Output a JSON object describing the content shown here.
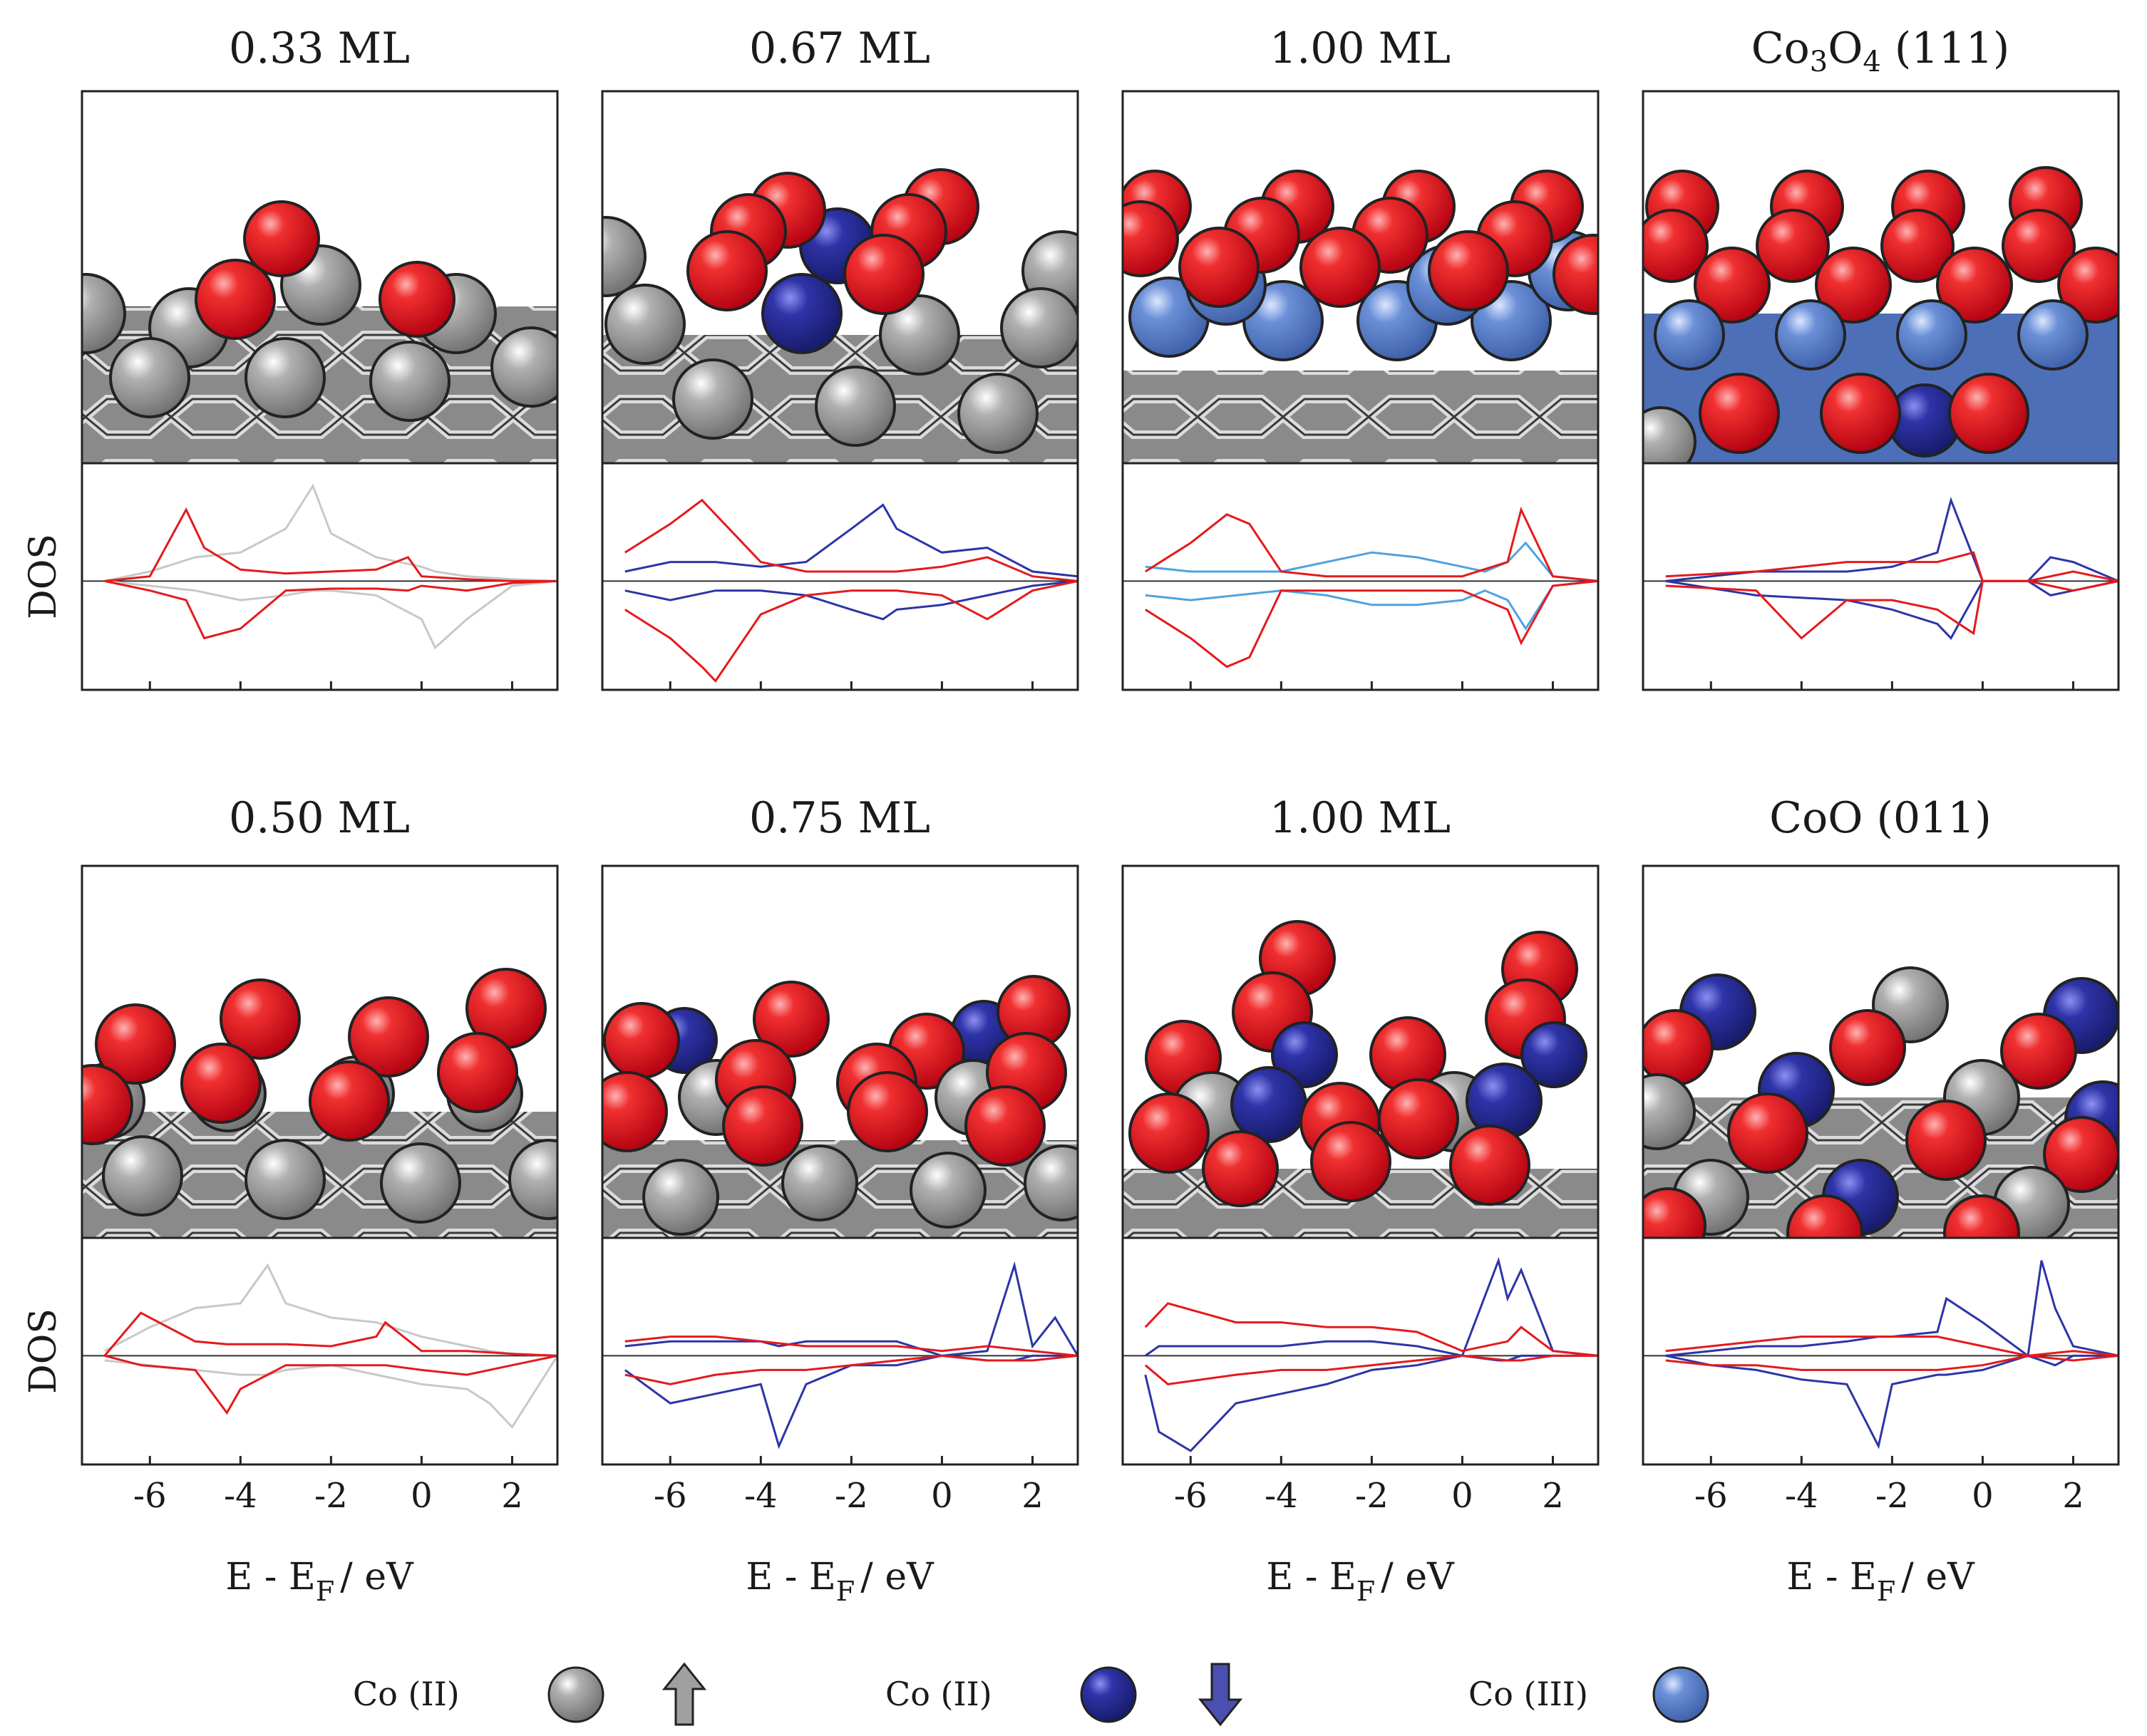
{
  "figure": {
    "y_axis_label": "DOS",
    "x_axis_label_main": "E - E",
    "x_axis_label_sub": "F",
    "x_axis_label_unit": "/ eV",
    "x_ticks": [
      "-6",
      "-4",
      "-2",
      "0",
      "2"
    ],
    "x_tick_values": [
      -6,
      -4,
      -2,
      0,
      2
    ],
    "x_range": [
      -7.5,
      3.0
    ]
  },
  "panels": [
    {
      "title": "0.33 ML",
      "structure": "0.33 ML"
    },
    {
      "title": "0.67 ML",
      "structure": "0.67 ML"
    },
    {
      "title": "1.00 ML",
      "structure": "1.00 ML top"
    },
    {
      "title_main": "Co",
      "title_sub1": "3",
      "title_mid": "O",
      "title_sub2": "4",
      "title_tail": " (111)",
      "structure": "Co3O4 (111)"
    },
    {
      "title": "0.50 ML",
      "structure": "0.50 ML"
    },
    {
      "title": "0.75 ML",
      "structure": "0.75 ML"
    },
    {
      "title": "1.00 ML",
      "structure": "1.00 ML bottom"
    },
    {
      "title": "CoO (011)",
      "structure": "CoO (011)"
    }
  ],
  "legend": {
    "items": [
      {
        "label": "Co (II)",
        "color": "#999999",
        "arrow": "up"
      },
      {
        "label": "Co (II)",
        "color": "#2a2f9a",
        "arrow": "down"
      },
      {
        "label": "Co (III)",
        "color": "#5f87d4",
        "arrow": "none"
      }
    ]
  },
  "colors": {
    "oxygen": "#e4161f",
    "co2_up": "#999999",
    "co2_down": "#2a2f9a",
    "co3": "#5f87d4",
    "dos_red": "#e41a1c",
    "dos_blue": "#2c35a6",
    "dos_lightblue": "#4fa3df",
    "dos_gray": "#d9d9d9"
  },
  "chart_data": [
    {
      "type": "line",
      "title": "0.33 ML",
      "xlabel": "E - E_F / eV",
      "ylabel": "DOS",
      "xlim": [
        -7.5,
        3
      ],
      "series": [
        {
          "name": "Co surface (gray)",
          "x": [
            -7,
            -6,
            -5,
            -4,
            -3,
            -2.4,
            -2,
            -1,
            0,
            0.3,
            1,
            2,
            3
          ],
          "up": [
            0,
            0.1,
            0.25,
            0.3,
            0.55,
            1.0,
            0.5,
            0.25,
            0.15,
            0.1,
            0.05,
            0.02,
            0
          ],
          "down": [
            0,
            -0.05,
            -0.1,
            -0.2,
            -0.15,
            -0.1,
            -0.1,
            -0.15,
            -0.4,
            -0.7,
            -0.4,
            -0.05,
            0
          ]
        },
        {
          "name": "O (red)",
          "x": [
            -7,
            -6,
            -5.2,
            -4.8,
            -4,
            -3,
            -2,
            -1,
            -0.3,
            0,
            1,
            2,
            3
          ],
          "up": [
            0,
            0.05,
            0.75,
            0.35,
            0.12,
            0.08,
            0.1,
            0.12,
            0.25,
            0.05,
            0.02,
            0,
            0
          ],
          "down": [
            0,
            -0.1,
            -0.2,
            -0.6,
            -0.5,
            -0.1,
            -0.08,
            -0.08,
            -0.1,
            -0.05,
            -0.1,
            -0.02,
            0
          ]
        }
      ]
    },
    {
      "type": "line",
      "title": "0.67 ML",
      "xlabel": "E - E_F / eV",
      "ylabel": "DOS",
      "xlim": [
        -7.5,
        3
      ],
      "series": [
        {
          "name": "Co(II) down (blue)",
          "x": [
            -7,
            -6,
            -5,
            -4,
            -3,
            -2,
            -1.3,
            -1,
            0,
            1,
            2,
            3
          ],
          "up": [
            0.1,
            0.2,
            0.2,
            0.15,
            0.2,
            0.55,
            0.8,
            0.55,
            0.3,
            0.35,
            0.1,
            0.05
          ],
          "down": [
            -0.1,
            -0.2,
            -0.1,
            -0.1,
            -0.15,
            -0.3,
            -0.4,
            -0.3,
            -0.25,
            -0.15,
            -0.05,
            0
          ]
        },
        {
          "name": "O (red)",
          "x": [
            -7,
            -6,
            -5.3,
            -5,
            -4,
            -3,
            -2,
            -1,
            0,
            1,
            2,
            3
          ],
          "up": [
            0.3,
            0.6,
            0.85,
            0.7,
            0.2,
            0.1,
            0.1,
            0.1,
            0.15,
            0.25,
            0.05,
            0
          ],
          "down": [
            -0.3,
            -0.6,
            -0.9,
            -1.05,
            -0.35,
            -0.15,
            -0.1,
            -0.1,
            -0.15,
            -0.4,
            -0.1,
            0
          ]
        }
      ]
    },
    {
      "type": "line",
      "title": "1.00 ML",
      "xlabel": "E - E_F / eV",
      "ylabel": "DOS",
      "xlim": [
        -7.5,
        3
      ],
      "series": [
        {
          "name": "Co(III) (light blue)",
          "x": [
            -7,
            -6,
            -4,
            -3,
            -2,
            -1,
            0,
            0.5,
            1,
            1.4,
            2,
            3
          ],
          "up": [
            0.15,
            0.1,
            0.1,
            0.2,
            0.3,
            0.25,
            0.15,
            0.1,
            0.2,
            0.4,
            0.05,
            0
          ],
          "down": [
            -0.15,
            -0.2,
            -0.1,
            -0.15,
            -0.25,
            -0.25,
            -0.2,
            -0.1,
            -0.2,
            -0.5,
            -0.05,
            0
          ]
        },
        {
          "name": "O (red)",
          "x": [
            -7,
            -6,
            -5.2,
            -4.7,
            -4,
            -3,
            -2,
            -1,
            0,
            1,
            1.3,
            2,
            3
          ],
          "up": [
            0.1,
            0.4,
            0.7,
            0.6,
            0.1,
            0.05,
            0.05,
            0.05,
            0.05,
            0.2,
            0.75,
            0.05,
            0
          ],
          "down": [
            -0.3,
            -0.6,
            -0.9,
            -0.8,
            -0.1,
            -0.1,
            -0.1,
            -0.1,
            -0.1,
            -0.3,
            -0.65,
            -0.05,
            0
          ]
        }
      ]
    },
    {
      "type": "line",
      "title": "Co3O4 (111)",
      "xlabel": "E - E_F / eV",
      "ylabel": "DOS",
      "xlim": [
        -7.5,
        3
      ],
      "series": [
        {
          "name": "Co(II) (blue)",
          "x": [
            -7,
            -5,
            -3,
            -2,
            -1,
            -0.7,
            0,
            1,
            1.5,
            2,
            3
          ],
          "up": [
            0,
            0.1,
            0.1,
            0.15,
            0.3,
            0.85,
            0,
            0,
            0.25,
            0.2,
            0
          ],
          "down": [
            0,
            -0.15,
            -0.2,
            -0.3,
            -0.45,
            -0.6,
            0,
            0,
            -0.15,
            -0.1,
            0
          ]
        },
        {
          "name": "O (red)",
          "x": [
            -7,
            -5,
            -4,
            -3,
            -2,
            -1,
            -0.2,
            0,
            1,
            2,
            3
          ],
          "up": [
            0.05,
            0.1,
            0.15,
            0.2,
            0.2,
            0.2,
            0.3,
            0,
            0,
            0.1,
            0
          ],
          "down": [
            -0.05,
            -0.1,
            -0.6,
            -0.2,
            -0.2,
            -0.3,
            -0.55,
            0,
            0,
            -0.1,
            0
          ]
        }
      ]
    },
    {
      "type": "line",
      "title": "0.50 ML",
      "xlabel": "E - E_F / eV",
      "ylabel": "DOS",
      "xlim": [
        -7.5,
        3
      ],
      "series": [
        {
          "name": "Co surface (gray)",
          "x": [
            -7,
            -6,
            -5,
            -4,
            -3.4,
            -3,
            -2,
            -1,
            0,
            1,
            1.5,
            2,
            3
          ],
          "up": [
            0.05,
            0.3,
            0.5,
            0.55,
            0.95,
            0.55,
            0.4,
            0.35,
            0.2,
            0.1,
            0.05,
            0.02,
            0
          ],
          "down": [
            -0.05,
            -0.1,
            -0.15,
            -0.2,
            -0.2,
            -0.15,
            -0.1,
            -0.2,
            -0.3,
            -0.35,
            -0.5,
            -0.75,
            0
          ]
        },
        {
          "name": "O (red)",
          "x": [
            -7,
            -6.2,
            -5,
            -4.3,
            -4,
            -3,
            -2,
            -1,
            -0.8,
            0,
            1,
            2,
            3
          ],
          "up": [
            0,
            0.45,
            0.15,
            0.12,
            0.12,
            0.12,
            0.1,
            0.2,
            0.35,
            0.05,
            0.05,
            0.02,
            0
          ],
          "down": [
            0,
            -0.1,
            -0.15,
            -0.6,
            -0.35,
            -0.1,
            -0.1,
            -0.1,
            -0.1,
            -0.15,
            -0.2,
            -0.1,
            0
          ]
        }
      ]
    },
    {
      "type": "line",
      "title": "0.75 ML",
      "xlabel": "E - E_F / eV",
      "ylabel": "DOS",
      "xlim": [
        -7.5,
        3
      ],
      "series": [
        {
          "name": "Co(II) down (blue)",
          "x": [
            -7,
            -6,
            -5,
            -4,
            -3.6,
            -3,
            -2,
            -1,
            0,
            1,
            1.6,
            2,
            2.5,
            3
          ],
          "up": [
            0.1,
            0.15,
            0.15,
            0.15,
            0.1,
            0.15,
            0.15,
            0.15,
            0,
            0.05,
            0.95,
            0.1,
            0.4,
            0
          ],
          "down": [
            -0.15,
            -0.5,
            -0.4,
            -0.3,
            -0.95,
            -0.3,
            -0.1,
            -0.1,
            0,
            -0.05,
            -0.05,
            0,
            0,
            0
          ]
        },
        {
          "name": "O (red)",
          "x": [
            -7,
            -6,
            -5,
            -4,
            -3,
            -2,
            -1,
            0,
            1,
            2,
            3
          ],
          "up": [
            0.15,
            0.2,
            0.2,
            0.15,
            0.1,
            0.1,
            0.1,
            0.05,
            0.1,
            0.05,
            0
          ],
          "down": [
            -0.2,
            -0.3,
            -0.2,
            -0.15,
            -0.15,
            -0.1,
            -0.05,
            0,
            -0.05,
            -0.05,
            0
          ]
        }
      ]
    },
    {
      "type": "line",
      "title": "1.00 ML",
      "xlabel": "E - E_F / eV",
      "ylabel": "DOS",
      "xlim": [
        -7.5,
        3
      ],
      "series": [
        {
          "name": "Co(II) down (blue)",
          "x": [
            -7,
            -6.7,
            -6,
            -5,
            -4,
            -3,
            -2,
            -1,
            0,
            0.8,
            1,
            1.3,
            2,
            3
          ],
          "up": [
            0,
            0.1,
            0.1,
            0.1,
            0.1,
            0.15,
            0.15,
            0.1,
            0,
            1.0,
            0.6,
            0.9,
            0.05,
            0
          ],
          "down": [
            -0.2,
            -0.8,
            -1.0,
            -0.5,
            -0.4,
            -0.3,
            -0.15,
            -0.1,
            0,
            -0.05,
            -0.05,
            0,
            0,
            0
          ]
        },
        {
          "name": "O (red)",
          "x": [
            -7,
            -6.5,
            -5,
            -4,
            -3,
            -2,
            -1,
            0,
            1,
            1.3,
            2,
            3
          ],
          "up": [
            0.3,
            0.55,
            0.35,
            0.35,
            0.3,
            0.3,
            0.25,
            0.05,
            0.15,
            0.3,
            0.05,
            0
          ],
          "down": [
            -0.1,
            -0.3,
            -0.2,
            -0.15,
            -0.15,
            -0.1,
            -0.05,
            0,
            -0.05,
            -0.05,
            0,
            0
          ]
        }
      ]
    },
    {
      "type": "line",
      "title": "CoO (011)",
      "xlabel": "E - E_F / eV",
      "ylabel": "DOS",
      "xlim": [
        -7.5,
        3
      ],
      "series": [
        {
          "name": "Co(II) down (blue)",
          "x": [
            -7,
            -6,
            -5,
            -4,
            -3,
            -2.3,
            -2,
            -1,
            -0.8,
            0,
            1,
            1.3,
            1.6,
            2,
            3
          ],
          "up": [
            0,
            0.05,
            0.1,
            0.1,
            0.15,
            0.2,
            0.2,
            0.25,
            0.6,
            0.35,
            0,
            1.0,
            0.5,
            0.1,
            0
          ],
          "down": [
            0,
            -0.1,
            -0.15,
            -0.25,
            -0.3,
            -0.95,
            -0.3,
            -0.2,
            -0.2,
            -0.15,
            0,
            -0.05,
            -0.1,
            0,
            0
          ]
        },
        {
          "name": "O (red)",
          "x": [
            -7,
            -6,
            -5,
            -4,
            -3,
            -2,
            -1,
            0,
            1,
            2,
            3
          ],
          "up": [
            0.05,
            0.1,
            0.15,
            0.2,
            0.2,
            0.2,
            0.2,
            0.1,
            0,
            0.05,
            0
          ],
          "down": [
            -0.05,
            -0.1,
            -0.1,
            -0.15,
            -0.15,
            -0.15,
            -0.15,
            -0.1,
            0,
            -0.05,
            0
          ]
        }
      ]
    }
  ]
}
